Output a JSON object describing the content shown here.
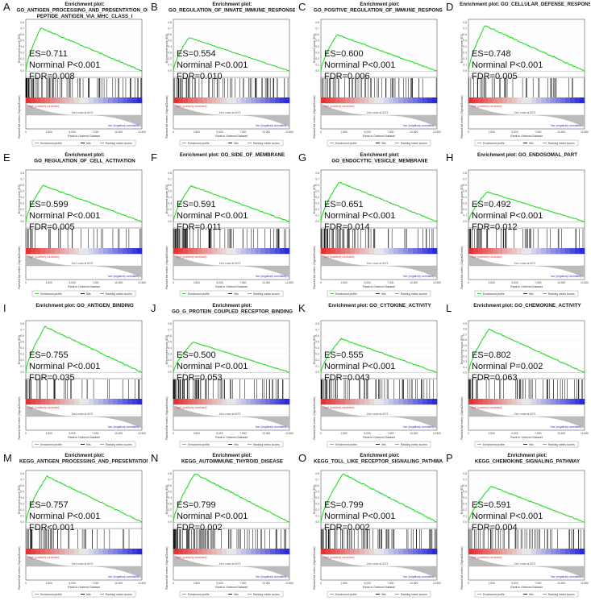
{
  "panels": [
    {
      "letter": "A",
      "title1": "Enrichment plot:",
      "title2": "GO_ANTIGEN_PROCESSING_AND_PRESENTATION_OF_",
      "title3": "PEPTIDE_ANTIGEN_VIA_MHC_CLASS_I",
      "es": "ES=0.711",
      "p": "Norminal P<0.001",
      "fdr": "FDR=0.008"
    },
    {
      "letter": "B",
      "title1": "Enrichment plot:",
      "title2": "GO_REGULATION_OF_INNATE_IMMUNE_RESPONSE",
      "title3": "",
      "es": "ES=0.554",
      "p": "Norminal P<0.001",
      "fdr": "FDR=0.010"
    },
    {
      "letter": "C",
      "title1": "Enrichment plot:",
      "title2": "GO_POSITIVE_REGULATION_OF_IMMUNE_RESPONSE",
      "title3": "",
      "es": "ES=0.600",
      "p": "Norminal P<0.001",
      "fdr": "FDR=0.006"
    },
    {
      "letter": "D",
      "title1": "Enrichment plot: GO_CELLULAR_DEFENSE_RESPONSE",
      "title2": "",
      "title3": "",
      "es": "ES=0.748",
      "p": "Norminal P<0.001",
      "fdr": "FDR=0.005"
    },
    {
      "letter": "E",
      "title1": "Enrichment plot:",
      "title2": "GO_REGULATION_OF_CELL_ACTIVATION",
      "title3": "",
      "es": "ES=0.599",
      "p": "Norminal P<0.001",
      "fdr": "FDR=0.005"
    },
    {
      "letter": "F",
      "title1": "Enrichment plot: GO_SIDE_OF_MEMBRANE",
      "title2": "",
      "title3": "",
      "es": "ES=0.591",
      "p": "Norminal P<0.001",
      "fdr": "FDR=0.011"
    },
    {
      "letter": "G",
      "title1": "Enrichment plot:",
      "title2": "GO_ENDOCYTIC_VESICLE_MEMBRANE",
      "title3": "",
      "es": "ES=0.651",
      "p": "Norminal P<0.001",
      "fdr": "FDR=0.014"
    },
    {
      "letter": "H",
      "title1": "Enrichment plot: GO_ENDOSOMAL_PART",
      "title2": "",
      "title3": "",
      "es": "ES=0.492",
      "p": "Norminal P<0.001",
      "fdr": "FDR=0.012"
    },
    {
      "letter": "I",
      "title1": "Enrichment plot: GO_ANTIGEN_BINDING",
      "title2": "",
      "title3": "",
      "es": "ES=0.755",
      "p": "Norminal P<0.001",
      "fdr": "FDR=0.035"
    },
    {
      "letter": "J",
      "title1": "Enrichment plot:",
      "title2": "GO_G_PROTEIN_COUPLED_RECEPTOR_BINDING",
      "title3": "",
      "es": "ES=0.500",
      "p": "Norminal P<0.001",
      "fdr": "FDR=0.053"
    },
    {
      "letter": "K",
      "title1": "Enrichment plot: GO_CYTOKINE_ACTIVITY",
      "title2": "",
      "title3": "",
      "es": "ES=0.555",
      "p": "Norminal P<0.001",
      "fdr": "FDR=0.043"
    },
    {
      "letter": "L",
      "title1": "Enrichment plot: GO_CHEMOKINE_ACTIVITY",
      "title2": "",
      "title3": "",
      "es": "ES=0.802",
      "p": "Norminal P=0.002",
      "fdr": "FDR=0.063"
    },
    {
      "letter": "M",
      "title1": "Enrichment plot:",
      "title2": "KEGG_ANTIGEN_PROCESSING_AND_PRESENTATION",
      "title3": "",
      "es": "ES=0.757",
      "p": "Norminal P<0.001",
      "fdr": "FDR<0.001"
    },
    {
      "letter": "N",
      "title1": "Enrichment plot:",
      "title2": "KEGG_AUTOIMMUNE_THYROID_DISEASE",
      "title3": "",
      "es": "ES=0.799",
      "p": "Norminal P<0.001",
      "fdr": "FDR=0.002"
    },
    {
      "letter": "O",
      "title1": "Enrichment plot:",
      "title2": "KEGG_TOLL_LIKE_RECEPTOR_SIGNALING_PATHWAY",
      "title3": "",
      "es": "ES=0.799",
      "p": "Norminal P<0.001",
      "fdr": "FDR=0.002"
    },
    {
      "letter": "P",
      "title1": "Enrichment plot:",
      "title2": "KEGG_CHEMOKINE_SIGNALING_PATHWAY",
      "title3": "",
      "es": "ES=0.591",
      "p": "Norminal P<0.001",
      "fdr": "FDR=0.004"
    }
  ],
  "common": {
    "es_axis_label": "Enrichment score (ES)",
    "metric_axis_label": "Ranked list metric (Signal2Noise)",
    "x_axis_label": "Rank in Ordered Dataset",
    "x_ticks": [
      "0",
      "2,500",
      "5,000",
      "7,500",
      "10,000",
      "12,500"
    ],
    "pos_label": "'high' (positively correlated)",
    "neg_label": "'low' (negatively correlated)",
    "zero_cross": "Zero cross at 6073",
    "legend": [
      "Enrichment profile",
      "Hits",
      "Ranking metric scores"
    ]
  },
  "colors": {
    "es_curve": "#22dd22",
    "hits": "#000000",
    "positive": "#e83030",
    "negative": "#2a2ad8",
    "metric_fill": "#bbbbbb"
  },
  "chart_data": {
    "type": "line",
    "description_source": "GSEA enrichment plots; per-panel ES values from printed stats",
    "x_range": [
      0,
      12500
    ],
    "zero_cross_rank": 6073,
    "es_peaks": [
      0.711,
      0.554,
      0.6,
      0.748,
      0.599,
      0.591,
      0.651,
      0.492,
      0.755,
      0.5,
      0.555,
      0.802,
      0.757,
      0.799,
      0.799,
      0.591
    ]
  }
}
